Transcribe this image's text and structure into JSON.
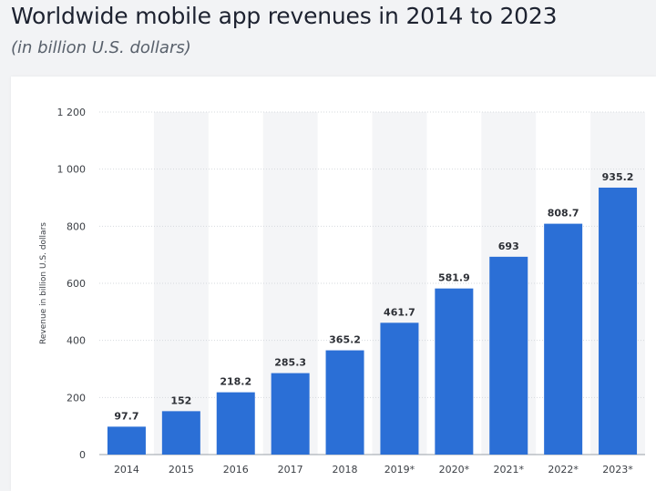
{
  "header": {
    "title": "Worldwide mobile app revenues in 2014 to 2023",
    "subtitle": "(in billion U.S. dollars)"
  },
  "colors": {
    "bar": "#2b6fd6",
    "band": "#f4f5f7",
    "grid": "#d6d9de",
    "baseline": "#9aa0a8"
  },
  "chart_data": {
    "type": "bar",
    "categories": [
      "2014",
      "2015",
      "2016",
      "2017",
      "2018",
      "2019*",
      "2020*",
      "2021*",
      "2022*",
      "2023*"
    ],
    "values": [
      97.7,
      152,
      218.2,
      285.3,
      365.2,
      461.7,
      581.9,
      693,
      808.7,
      935.2
    ],
    "value_labels": [
      "97.7",
      "152",
      "218.2",
      "285.3",
      "365.2",
      "461.7",
      "581.9",
      "693",
      "808.7",
      "935.2"
    ],
    "ylabel": "Revenue in billion U.S. dollars",
    "xlabel": "",
    "ylim": [
      0,
      1200
    ],
    "yticks": [
      0,
      200,
      400,
      600,
      800,
      1000,
      1200
    ],
    "ytick_labels": [
      "0",
      "200",
      "400",
      "600",
      "800",
      "1 000",
      "1 200"
    ],
    "grid": true,
    "legend": "none"
  }
}
